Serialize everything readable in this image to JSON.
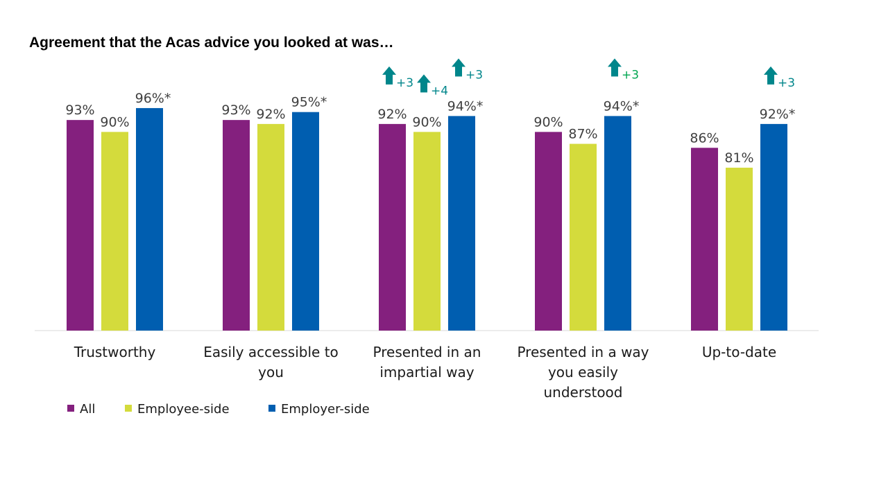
{
  "chart_data": {
    "type": "bar",
    "title": "Agreement that the Acas advice you looked at was…",
    "categories": [
      [
        "Trustworthy"
      ],
      [
        "Easily accessible to",
        "you"
      ],
      [
        "Presented in an",
        "impartial way"
      ],
      [
        "Presented in a way",
        "you easily",
        "understood"
      ],
      [
        "Up-to-date"
      ]
    ],
    "series": [
      {
        "name": "All",
        "color": "#84207E",
        "values": [
          93,
          93,
          92,
          90,
          86
        ],
        "labels": [
          "93%",
          "93%",
          "92%",
          "90%",
          "86%"
        ]
      },
      {
        "name": "Employee-side",
        "color": "#D4DB3C",
        "values": [
          90,
          92,
          90,
          87,
          81
        ],
        "labels": [
          "90%",
          "92%",
          "90%",
          "87%",
          "81%"
        ]
      },
      {
        "name": "Employer-side",
        "color": "#005EB0",
        "values": [
          96,
          95,
          94,
          94,
          92
        ],
        "labels": [
          "96%*",
          "95%*",
          "94%*",
          "94%*",
          "92%*"
        ]
      }
    ],
    "ylim": [
      40,
      100
    ],
    "grid": false,
    "legend_position": "bottom-left",
    "annotations": [
      {
        "category": 2,
        "series": 0,
        "text": "+3",
        "icon": "up-arrow-icon",
        "color": "#00868B",
        "text_color": "#00868B"
      },
      {
        "category": 2,
        "series": 1,
        "text": "+4",
        "icon": "up-arrow-icon",
        "color": "#00868B",
        "text_color": "#00868B"
      },
      {
        "category": 2,
        "series": 2,
        "text": "+3",
        "icon": "up-arrow-icon",
        "color": "#00868B",
        "text_color": "#00868B"
      },
      {
        "category": 3,
        "series": 2,
        "text": "+3",
        "icon": "up-arrow-icon",
        "color": "#00868B",
        "text_color": "#00A650"
      },
      {
        "category": 4,
        "series": 2,
        "text": "+3",
        "icon": "up-arrow-icon",
        "color": "#00868B",
        "text_color": "#00868B"
      }
    ]
  }
}
